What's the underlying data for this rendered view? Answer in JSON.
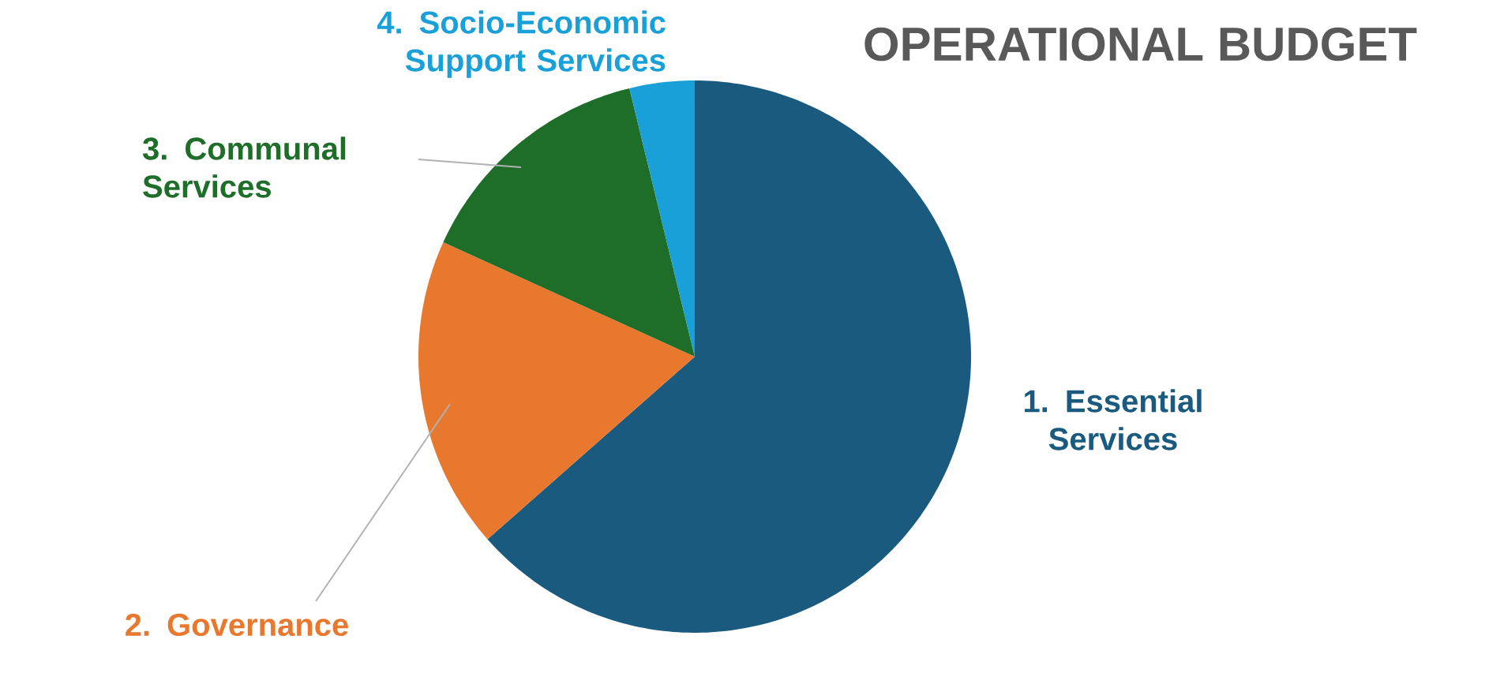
{
  "chart_data": {
    "type": "pie",
    "title": "OPERATIONAL BUDGET",
    "categories": [
      "1. Essential Services",
      "2. Governance",
      "3. Communal Services",
      "4. Socio-Economic Support Services"
    ],
    "values": [
      63.5,
      18.3,
      14.4,
      3.8
    ],
    "colors": [
      "#1a5a7e",
      "#e8782e",
      "#1e6e2a",
      "#1aa0d8"
    ]
  }
}
